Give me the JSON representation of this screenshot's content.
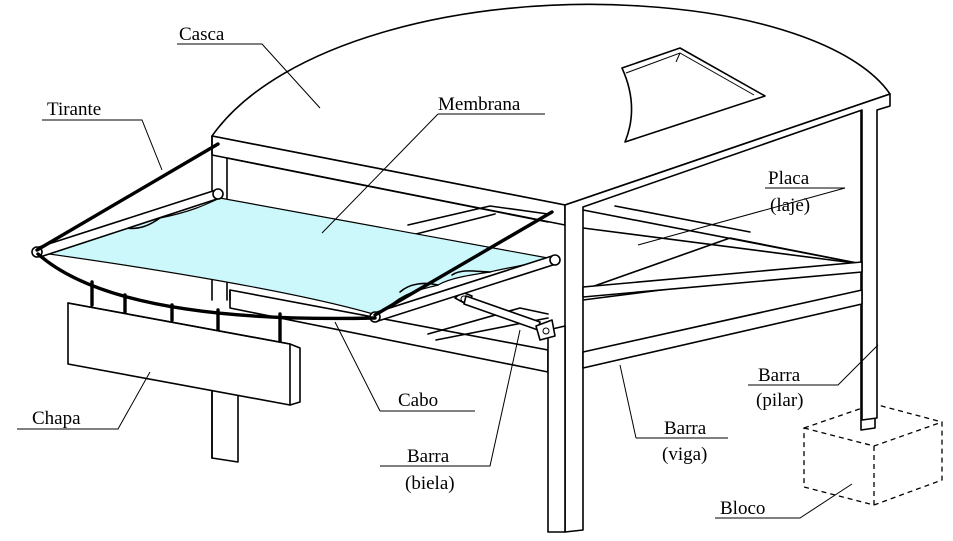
{
  "labels": {
    "casca": "Casca",
    "tirante": "Tirante",
    "membrana": "Membrana",
    "placa": "Placa",
    "laje": "(laje)",
    "chapa": "Chapa",
    "cabo": "Cabo",
    "barra_biela": "Barra",
    "biela": "(biela)",
    "barra_viga": "Barra",
    "viga": "(viga)",
    "barra_pilar": "Barra",
    "pilar": "(pilar)",
    "bloco": "Bloco"
  },
  "colors": {
    "membrane_fill": "#ccf7fb",
    "plate_fill": "#d5f5cf",
    "line": "#000000",
    "background": "#ffffff"
  }
}
